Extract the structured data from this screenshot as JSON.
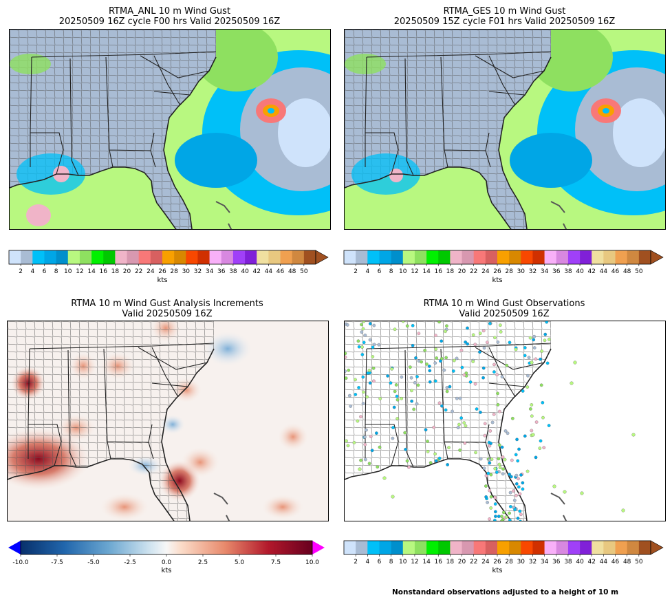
{
  "panels": [
    {
      "title_line1": "RTMA_ANL 10 m Wind Gust",
      "title_line2": "20250509 16Z cycle F00 hrs Valid 20250509 16Z"
    },
    {
      "title_line1": "RTMA_GES 10 m Wind Gust",
      "title_line2": "20250509 15Z cycle F01 hrs Valid 20250509 16Z"
    },
    {
      "title_line1": "RTMA 10 m Wind Gust Analysis Increments",
      "title_line2": "Valid 20250509 16Z"
    },
    {
      "title_line1": "RTMA 10 m Wind Gust Observations",
      "title_line2": "Valid 20250509 16Z"
    }
  ],
  "gust_colorbar": {
    "unit": "kts",
    "ticks": [
      "2",
      "4",
      "6",
      "8",
      "10",
      "12",
      "14",
      "16",
      "18",
      "20",
      "22",
      "24",
      "26",
      "28",
      "30",
      "32",
      "34",
      "36",
      "38",
      "40",
      "42",
      "44",
      "46",
      "48",
      "50"
    ],
    "colors": [
      "#cfe3fb",
      "#a9bcd4",
      "#00c0f8",
      "#00a6e6",
      "#008fcc",
      "#b8f880",
      "#8ee060",
      "#00f000",
      "#00c800",
      "#f0b4c8",
      "#d898b0",
      "#f87878",
      "#d86060",
      "#f8a000",
      "#d88800",
      "#f84800",
      "#d03000",
      "#f8b0f8",
      "#d888e0",
      "#a040f8",
      "#8020d8",
      "#f0e0a0",
      "#e8c880",
      "#f0a050",
      "#d08840",
      "#a05020"
    ]
  },
  "increment_colorbar": {
    "unit": "kts",
    "ticks": [
      "-10.0",
      "-7.5",
      "-5.0",
      "-2.5",
      "0.0",
      "2.5",
      "5.0",
      "7.5",
      "10.0"
    ],
    "min_color": "#0000ff",
    "max_color": "#ff00ff"
  },
  "footnote": "Nonstandard observations adjusted to a height of 10 m"
}
